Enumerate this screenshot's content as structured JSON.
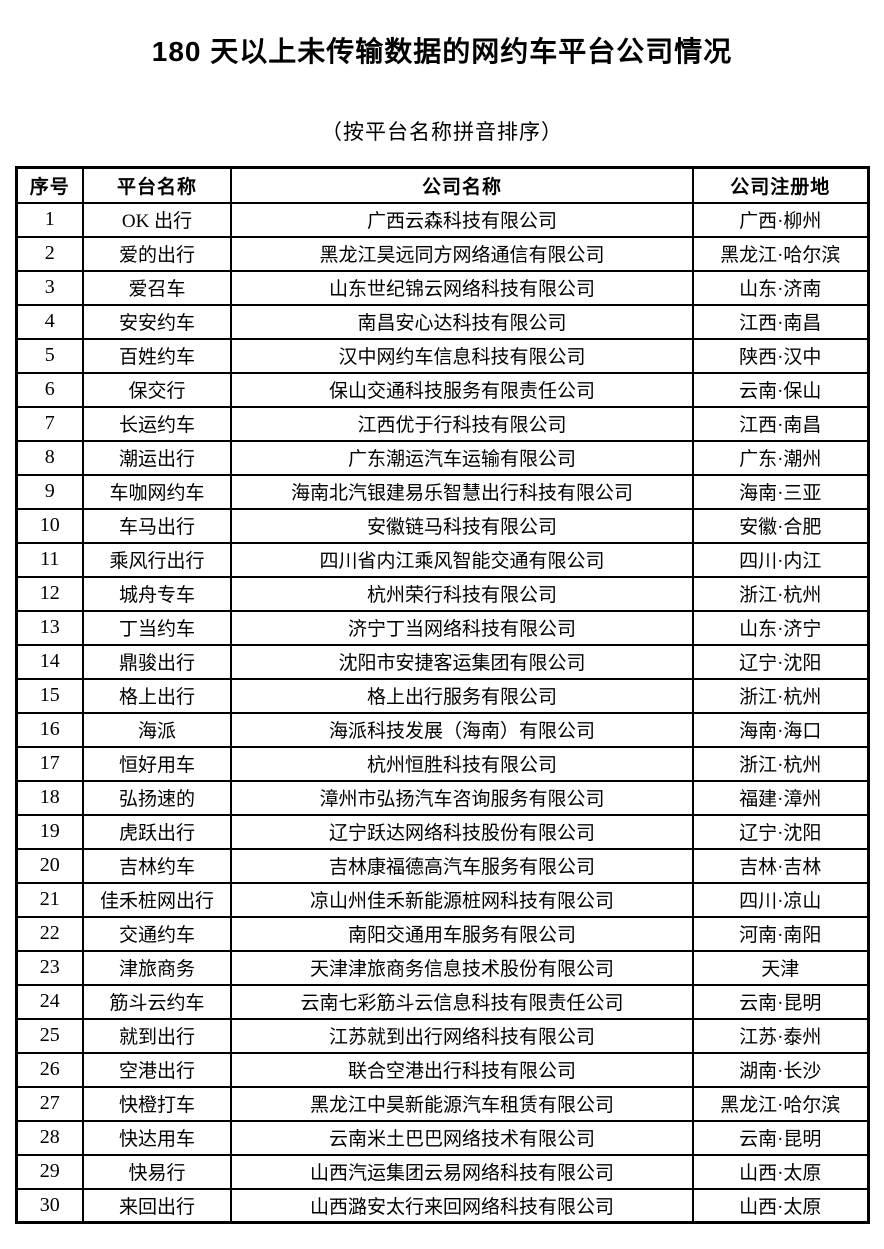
{
  "page": {
    "title": "180 天以上未传输数据的网约车平台公司情况",
    "subtitle": "（按平台名称拼音排序）"
  },
  "colors": {
    "text": "#000000",
    "border": "#000000",
    "background": "#ffffff"
  },
  "table": {
    "headers": [
      "序号",
      "平台名称",
      "公司名称",
      "公司注册地"
    ],
    "rows": [
      [
        "1",
        "OK 出行",
        "广西云森科技有限公司",
        "广西·柳州"
      ],
      [
        "2",
        "爱的出行",
        "黑龙江昊远同方网络通信有限公司",
        "黑龙江·哈尔滨"
      ],
      [
        "3",
        "爱召车",
        "山东世纪锦云网络科技有限公司",
        "山东·济南"
      ],
      [
        "4",
        "安安约车",
        "南昌安心达科技有限公司",
        "江西·南昌"
      ],
      [
        "5",
        "百姓约车",
        "汉中网约车信息科技有限公司",
        "陕西·汉中"
      ],
      [
        "6",
        "保交行",
        "保山交通科技服务有限责任公司",
        "云南·保山"
      ],
      [
        "7",
        "长运约车",
        "江西优于行科技有限公司",
        "江西·南昌"
      ],
      [
        "8",
        "潮运出行",
        "广东潮运汽车运输有限公司",
        "广东·潮州"
      ],
      [
        "9",
        "车咖网约车",
        "海南北汽银建易乐智慧出行科技有限公司",
        "海南·三亚"
      ],
      [
        "10",
        "车马出行",
        "安徽链马科技有限公司",
        "安徽·合肥"
      ],
      [
        "11",
        "乘风行出行",
        "四川省内江乘风智能交通有限公司",
        "四川·内江"
      ],
      [
        "12",
        "城舟专车",
        "杭州荣行科技有限公司",
        "浙江·杭州"
      ],
      [
        "13",
        "丁当约车",
        "济宁丁当网络科技有限公司",
        "山东·济宁"
      ],
      [
        "14",
        "鼎骏出行",
        "沈阳市安捷客运集团有限公司",
        "辽宁·沈阳"
      ],
      [
        "15",
        "格上出行",
        "格上出行服务有限公司",
        "浙江·杭州"
      ],
      [
        "16",
        "海派",
        "海派科技发展（海南）有限公司",
        "海南·海口"
      ],
      [
        "17",
        "恒好用车",
        "杭州恒胜科技有限公司",
        "浙江·杭州"
      ],
      [
        "18",
        "弘扬速的",
        "漳州市弘扬汽车咨询服务有限公司",
        "福建·漳州"
      ],
      [
        "19",
        "虎跃出行",
        "辽宁跃达网络科技股份有限公司",
        "辽宁·沈阳"
      ],
      [
        "20",
        "吉林约车",
        "吉林康福德高汽车服务有限公司",
        "吉林·吉林"
      ],
      [
        "21",
        "佳禾桩网出行",
        "凉山州佳禾新能源桩网科技有限公司",
        "四川·凉山"
      ],
      [
        "22",
        "交通约车",
        "南阳交通用车服务有限公司",
        "河南·南阳"
      ],
      [
        "23",
        "津旅商务",
        "天津津旅商务信息技术股份有限公司",
        "天津"
      ],
      [
        "24",
        "筋斗云约车",
        "云南七彩筋斗云信息科技有限责任公司",
        "云南·昆明"
      ],
      [
        "25",
        "就到出行",
        "江苏就到出行网络科技有限公司",
        "江苏·泰州"
      ],
      [
        "26",
        "空港出行",
        "联合空港出行科技有限公司",
        "湖南·长沙"
      ],
      [
        "27",
        "快橙打车",
        "黑龙江中昊新能源汽车租赁有限公司",
        "黑龙江·哈尔滨"
      ],
      [
        "28",
        "快达用车",
        "云南米土巴巴网络技术有限公司",
        "云南·昆明"
      ],
      [
        "29",
        "快易行",
        "山西汽运集团云易网络科技有限公司",
        "山西·太原"
      ],
      [
        "30",
        "来回出行",
        "山西潞安太行来回网络科技有限公司",
        "山西·太原"
      ]
    ]
  }
}
